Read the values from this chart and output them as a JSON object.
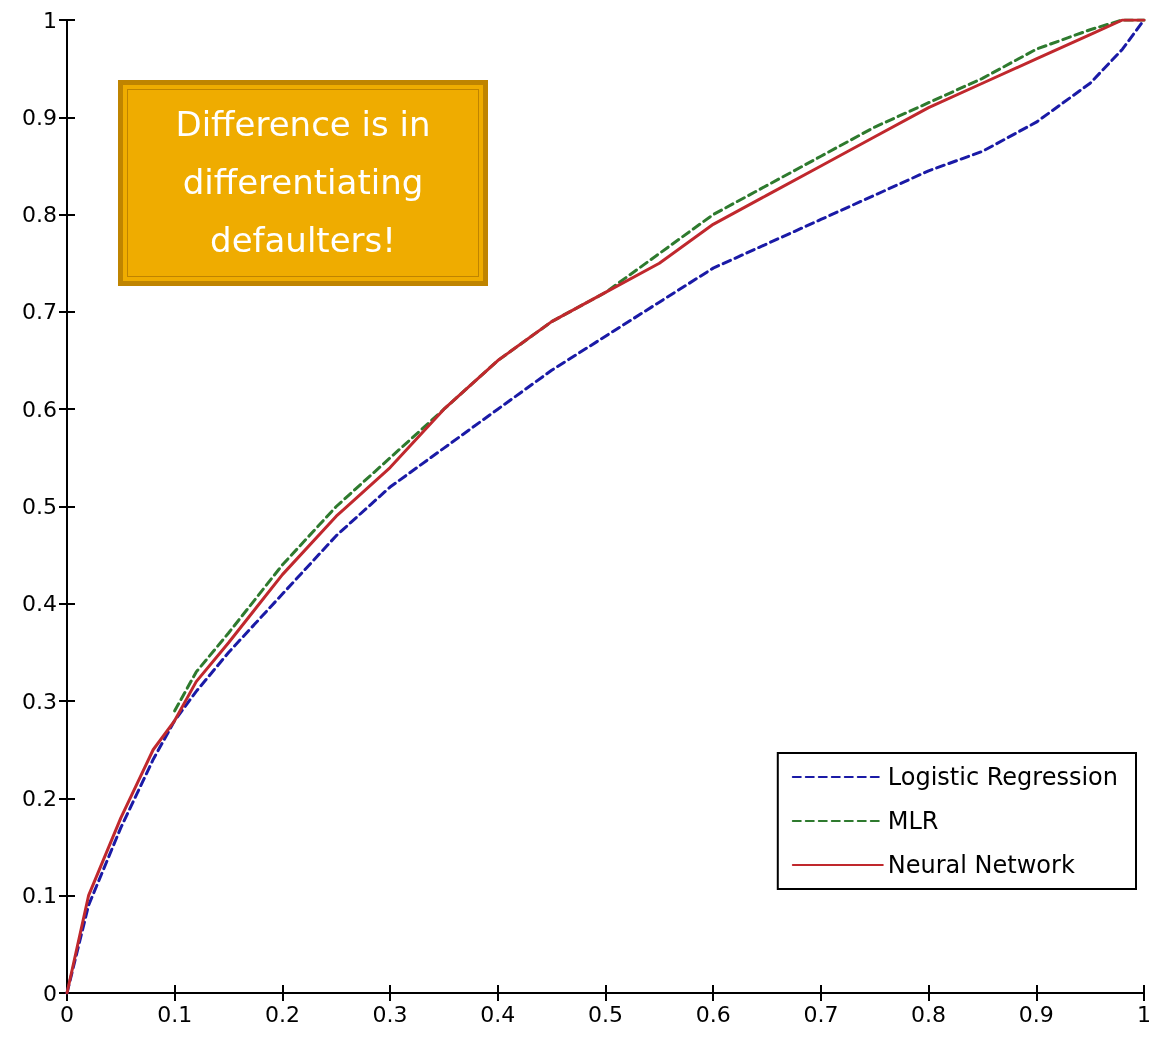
{
  "chart_data": {
    "type": "line",
    "xlim": [
      0,
      1
    ],
    "ylim": [
      0,
      1
    ],
    "xticks": [
      0,
      0.1,
      0.2,
      0.3,
      0.4,
      0.5,
      0.6,
      0.7,
      0.8,
      0.9,
      1
    ],
    "yticks": [
      0,
      0.1,
      0.2,
      0.3,
      0.4,
      0.5,
      0.6,
      0.7,
      0.8,
      0.9,
      1
    ],
    "grid": false,
    "legend": "bottom right",
    "marker": "none",
    "annotations": [
      "Difference is in differentiating defaulters!"
    ],
    "series": [
      {
        "name": "Logistic Regression",
        "color": "#1a1aa6",
        "line_style": "dashed",
        "x": [
          0,
          0.02,
          0.05,
          0.08,
          0.1,
          0.12,
          0.15,
          0.2,
          0.25,
          0.3,
          0.35,
          0.4,
          0.45,
          0.5,
          0.55,
          0.6,
          0.65,
          0.7,
          0.75,
          0.8,
          0.85,
          0.9,
          0.95,
          0.98,
          1
        ],
        "values": [
          0,
          0.09,
          0.17,
          0.24,
          0.28,
          0.31,
          0.35,
          0.41,
          0.47,
          0.52,
          0.56,
          0.6,
          0.64,
          0.675,
          0.71,
          0.745,
          0.77,
          0.795,
          0.82,
          0.845,
          0.865,
          0.895,
          0.935,
          0.97,
          1
        ]
      },
      {
        "name": "MLR",
        "color": "#2e7a2e",
        "line_style": "dashed",
        "x": [
          0.1,
          0.12,
          0.15,
          0.2,
          0.25,
          0.3,
          0.35,
          0.4,
          0.45,
          0.5,
          0.55,
          0.6,
          0.65,
          0.7,
          0.75,
          0.8,
          0.85,
          0.9,
          0.95,
          0.98,
          1
        ],
        "values": [
          0.29,
          0.33,
          0.37,
          0.44,
          0.5,
          0.55,
          0.6,
          0.65,
          0.69,
          0.72,
          0.76,
          0.8,
          0.83,
          0.86,
          0.89,
          0.915,
          0.94,
          0.97,
          0.99,
          1,
          1
        ]
      },
      {
        "name": "Neural Network",
        "color": "#c0282d",
        "line_style": "solid",
        "x": [
          0,
          0.02,
          0.05,
          0.08,
          0.1,
          0.12,
          0.15,
          0.2,
          0.25,
          0.3,
          0.35,
          0.4,
          0.45,
          0.5,
          0.55,
          0.6,
          0.65,
          0.7,
          0.75,
          0.8,
          0.85,
          0.9,
          0.95,
          0.98,
          1
        ],
        "values": [
          0,
          0.1,
          0.18,
          0.25,
          0.28,
          0.32,
          0.36,
          0.43,
          0.49,
          0.54,
          0.6,
          0.65,
          0.69,
          0.72,
          0.75,
          0.79,
          0.82,
          0.85,
          0.88,
          0.91,
          0.935,
          0.96,
          0.985,
          1,
          1
        ]
      }
    ]
  }
}
